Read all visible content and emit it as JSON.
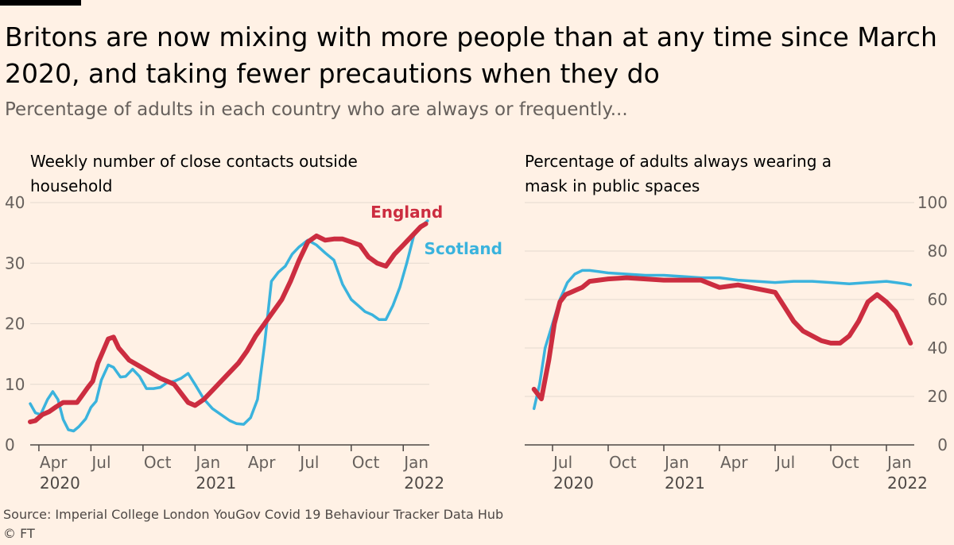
{
  "title": "Britons are now mixing with more people than at any time since March 2020, and taking fewer precautions when they do",
  "subtitle": "Percentage of adults in each country who are always or frequently...",
  "source": "Source: Imperial College London YouGov Covid 19 Behaviour Tracker Data Hub",
  "copyright": "© FT",
  "colors": {
    "england": "#cc2d40",
    "scotland": "#3ab3dd",
    "grid": "#e3d9cf",
    "axis": "#66605c"
  },
  "chart_data": [
    {
      "type": "line",
      "title": "Weekly number of close contacts outside household",
      "x_unit": "months since 2020-01",
      "xlim": [
        2.5,
        25.5
      ],
      "ylim": [
        0,
        40
      ],
      "yticks": [
        0,
        10,
        20,
        30,
        40
      ],
      "xticks": [
        {
          "month": 3.0,
          "label": "Apr",
          "year": "2020"
        },
        {
          "month": 6.0,
          "label": "Jul"
        },
        {
          "month": 9.0,
          "label": "Oct"
        },
        {
          "month": 12.0,
          "label": "Jan",
          "year": "2021"
        },
        {
          "month": 15.0,
          "label": "Apr"
        },
        {
          "month": 18.0,
          "label": "Jul"
        },
        {
          "month": 21.0,
          "label": "Oct"
        },
        {
          "month": 24.0,
          "label": "Jan",
          "year": "2022"
        }
      ],
      "series": [
        {
          "name": "Scotland",
          "key": "scotland",
          "label_x": 25.2,
          "label_y": 31.5,
          "x": [
            2.5,
            2.8,
            3.1,
            3.5,
            3.8,
            4.1,
            4.4,
            4.7,
            5.0,
            5.3,
            5.7,
            6.0,
            6.3,
            6.6,
            7.0,
            7.3,
            7.7,
            8.0,
            8.4,
            8.8,
            9.2,
            9.6,
            10.0,
            10.4,
            10.8,
            11.2,
            11.6,
            12.0,
            12.5,
            13.0,
            13.5,
            14.0,
            14.4,
            14.8,
            15.2,
            15.6,
            16.0,
            16.4,
            16.8,
            17.2,
            17.6,
            18.0,
            18.5,
            19.0,
            19.5,
            20.0,
            20.5,
            21.0,
            21.4,
            21.8,
            22.2,
            22.6,
            23.0,
            23.4,
            23.8,
            24.2,
            24.6,
            25.0,
            25.4
          ],
          "y": [
            6.8,
            5.3,
            5.0,
            7.5,
            8.8,
            7.5,
            4.2,
            2.5,
            2.3,
            3.0,
            4.3,
            6.2,
            7.2,
            10.7,
            13.2,
            12.8,
            11.2,
            11.3,
            12.5,
            11.3,
            9.3,
            9.3,
            9.5,
            10.3,
            10.5,
            11.0,
            11.8,
            10.0,
            7.6,
            6.0,
            5.0,
            4.0,
            3.5,
            3.4,
            4.5,
            7.5,
            16.5,
            27.0,
            28.5,
            29.5,
            31.5,
            32.7,
            33.8,
            33.0,
            31.7,
            30.5,
            26.5,
            24.0,
            23.0,
            22.0,
            21.5,
            20.7,
            20.7,
            23.0,
            26.0,
            30.0,
            34.5,
            36.0,
            37.0
          ]
        },
        {
          "name": "England",
          "key": "england",
          "label_x": 24.2,
          "label_y": 37.5,
          "x": [
            2.5,
            2.8,
            3.2,
            3.6,
            4.0,
            4.4,
            4.8,
            5.2,
            5.5,
            5.8,
            6.1,
            6.4,
            6.7,
            7.0,
            7.3,
            7.6,
            7.9,
            8.2,
            8.5,
            8.8,
            9.1,
            9.4,
            9.7,
            10.0,
            10.4,
            10.8,
            11.2,
            11.6,
            12.0,
            12.5,
            13.0,
            13.5,
            14.0,
            14.5,
            15.0,
            15.5,
            16.0,
            16.5,
            17.0,
            17.5,
            18.0,
            18.5,
            19.0,
            19.5,
            20.0,
            20.5,
            21.0,
            21.5,
            22.0,
            22.5,
            23.0,
            23.5,
            24.0,
            24.5,
            25.0,
            25.3
          ],
          "y": [
            3.8,
            4.0,
            5.0,
            5.5,
            6.3,
            7.0,
            7.0,
            7.0,
            8.2,
            9.4,
            10.5,
            13.5,
            15.5,
            17.5,
            17.8,
            16.0,
            15.0,
            14.0,
            13.5,
            13.0,
            12.5,
            12.0,
            11.5,
            11.0,
            10.5,
            10.0,
            8.5,
            7.0,
            6.5,
            7.5,
            9.0,
            10.5,
            12.0,
            13.5,
            15.5,
            18.0,
            20.0,
            22.0,
            24.0,
            27.0,
            30.5,
            33.5,
            34.5,
            33.8,
            34.0,
            34.0,
            33.5,
            33.0,
            31.0,
            30.0,
            29.5,
            31.5,
            33.0,
            34.5,
            36.0,
            36.5
          ]
        }
      ]
    },
    {
      "type": "line",
      "title": "Percentage of adults always wearing a mask in public spaces",
      "x_unit": "months since 2020-01",
      "xlim": [
        4.5,
        25.5
      ],
      "ylim": [
        0,
        100
      ],
      "yticks": [
        0,
        20,
        40,
        60,
        80,
        100
      ],
      "xticks": [
        {
          "month": 6.0,
          "label": "Jul",
          "year": "2020"
        },
        {
          "month": 9.0,
          "label": "Oct"
        },
        {
          "month": 12.0,
          "label": "Jan",
          "year": "2021"
        },
        {
          "month": 15.0,
          "label": "Apr"
        },
        {
          "month": 18.0,
          "label": "Jul"
        },
        {
          "month": 21.0,
          "label": "Oct"
        },
        {
          "month": 24.0,
          "label": "Jan",
          "year": "2022"
        }
      ],
      "series": [
        {
          "name": "Scotland",
          "key": "scotland",
          "x": [
            5.0,
            5.3,
            5.6,
            6.0,
            6.4,
            6.8,
            7.2,
            7.6,
            8.0,
            8.5,
            9.0,
            10.0,
            11.0,
            12.0,
            13.0,
            14.0,
            15.0,
            16.0,
            17.0,
            18.0,
            19.0,
            20.0,
            21.0,
            22.0,
            23.0,
            24.0,
            24.5,
            25.0,
            25.3
          ],
          "y": [
            15.0,
            25.0,
            40.0,
            50.0,
            60.0,
            67.0,
            70.5,
            72.0,
            72.0,
            71.5,
            71.0,
            70.5,
            70.0,
            70.0,
            69.5,
            69.0,
            69.0,
            68.0,
            67.5,
            67.0,
            67.5,
            67.5,
            67.0,
            66.5,
            67.0,
            67.5,
            67.0,
            66.5,
            66.0
          ]
        },
        {
          "name": "England",
          "key": "england",
          "x": [
            5.0,
            5.4,
            5.8,
            6.1,
            6.4,
            6.7,
            7.0,
            7.3,
            7.6,
            8.0,
            8.5,
            9.0,
            10.0,
            11.0,
            12.0,
            13.0,
            14.0,
            15.0,
            16.0,
            17.0,
            18.0,
            18.5,
            19.0,
            19.5,
            20.0,
            20.5,
            21.0,
            21.5,
            22.0,
            22.5,
            23.0,
            23.5,
            24.0,
            24.5,
            25.0,
            25.3
          ],
          "y": [
            23.0,
            19.0,
            35.0,
            50.0,
            59.0,
            62.0,
            63.0,
            64.0,
            65.0,
            67.5,
            68.0,
            68.5,
            69.0,
            68.5,
            68.0,
            68.0,
            68.0,
            65.0,
            66.0,
            64.5,
            63.0,
            57.0,
            51.0,
            47.0,
            45.0,
            43.0,
            42.0,
            42.0,
            45.0,
            51.0,
            59.0,
            62.0,
            59.0,
            55.0,
            47.0,
            42.0
          ]
        }
      ]
    }
  ]
}
